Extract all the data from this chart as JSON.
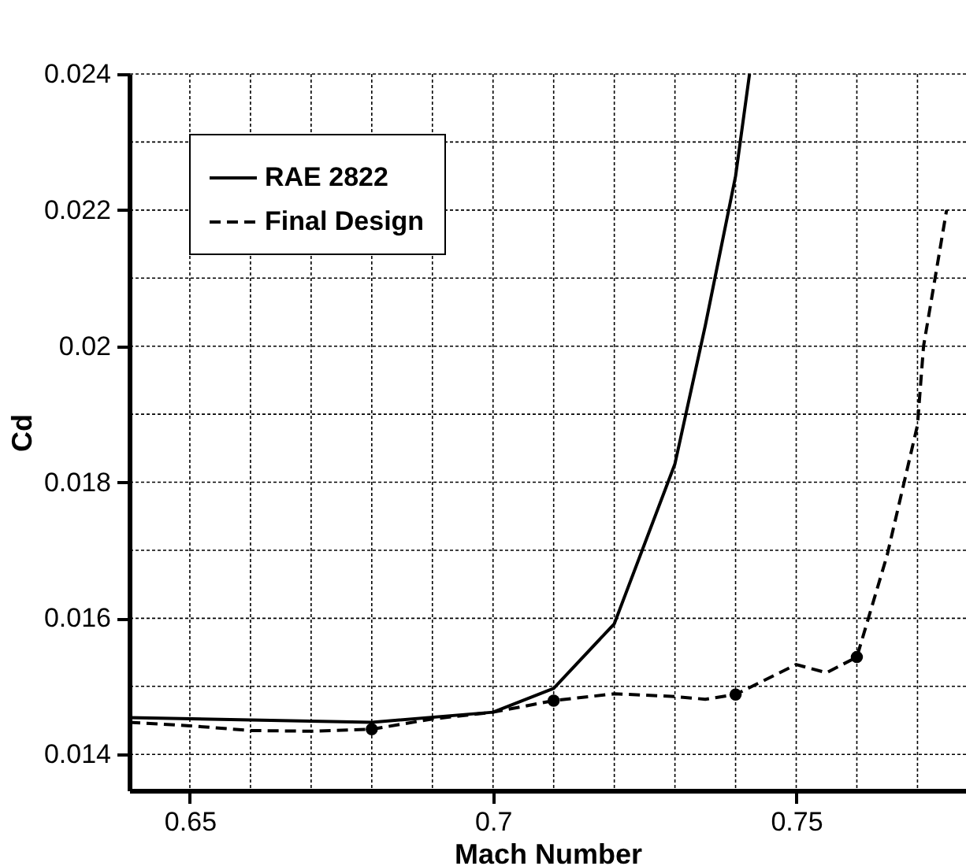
{
  "chart_data": {
    "type": "line",
    "xlabel": "Mach Number",
    "ylabel": "Cd",
    "xlim": [
      0.64,
      0.778
    ],
    "ylim": [
      0.01347,
      0.024
    ],
    "xticks": [
      0.65,
      {
        "value": 0.66,
        "label": null
      },
      {
        "value": 0.67,
        "label": null
      },
      {
        "value": 0.68,
        "label": null
      },
      {
        "value": 0.69,
        "label": null
      },
      0.7,
      {
        "value": 0.71,
        "label": null
      },
      {
        "value": 0.72,
        "label": null
      },
      {
        "value": 0.73,
        "label": null
      },
      {
        "value": 0.74,
        "label": null
      },
      0.75,
      {
        "value": 0.76,
        "label": null
      },
      {
        "value": 0.77,
        "label": null
      }
    ],
    "yticks": [
      0.014,
      {
        "value": 0.015,
        "label": null
      },
      0.016,
      {
        "value": 0.017,
        "label": null
      },
      0.018,
      {
        "value": 0.019,
        "label": null
      },
      0.02,
      {
        "value": 0.021,
        "label": null
      },
      0.022,
      {
        "value": 0.023,
        "label": null
      },
      0.024
    ],
    "grid": true,
    "legend": "top left",
    "series": [
      {
        "name": "RAE 2822",
        "color": "#000000",
        "line_style": "solid",
        "x": [
          0.64,
          0.68,
          0.7,
          0.71,
          0.72,
          0.73,
          0.735,
          0.74,
          0.7423
        ],
        "values": [
          0.01454,
          0.01447,
          0.01462,
          0.01497,
          0.01592,
          0.01827,
          0.0203,
          0.0225,
          0.024
        ]
      },
      {
        "name": "Final Design",
        "color": "#000000",
        "line_style": "dashed",
        "x": [
          0.64,
          0.65,
          0.66,
          0.67,
          0.68,
          0.69,
          0.7,
          0.71,
          0.72,
          0.73,
          0.735,
          0.74,
          0.75,
          0.755,
          0.76,
          0.765,
          0.77,
          0.771,
          0.7748
        ],
        "values": [
          0.01447,
          0.01442,
          0.01435,
          0.01434,
          0.01437,
          0.01452,
          0.01462,
          0.01479,
          0.01489,
          0.01485,
          0.01481,
          0.01488,
          0.01532,
          0.0152,
          0.01543,
          0.01693,
          0.01884,
          0.02,
          0.022
        ]
      },
      {
        "type": "scatter",
        "color": "#000000",
        "marker": "circle",
        "x": [
          0.68,
          0.71,
          0.74,
          0.76
        ],
        "values": [
          0.01437,
          0.01479,
          0.01488,
          0.01543
        ]
      }
    ]
  }
}
